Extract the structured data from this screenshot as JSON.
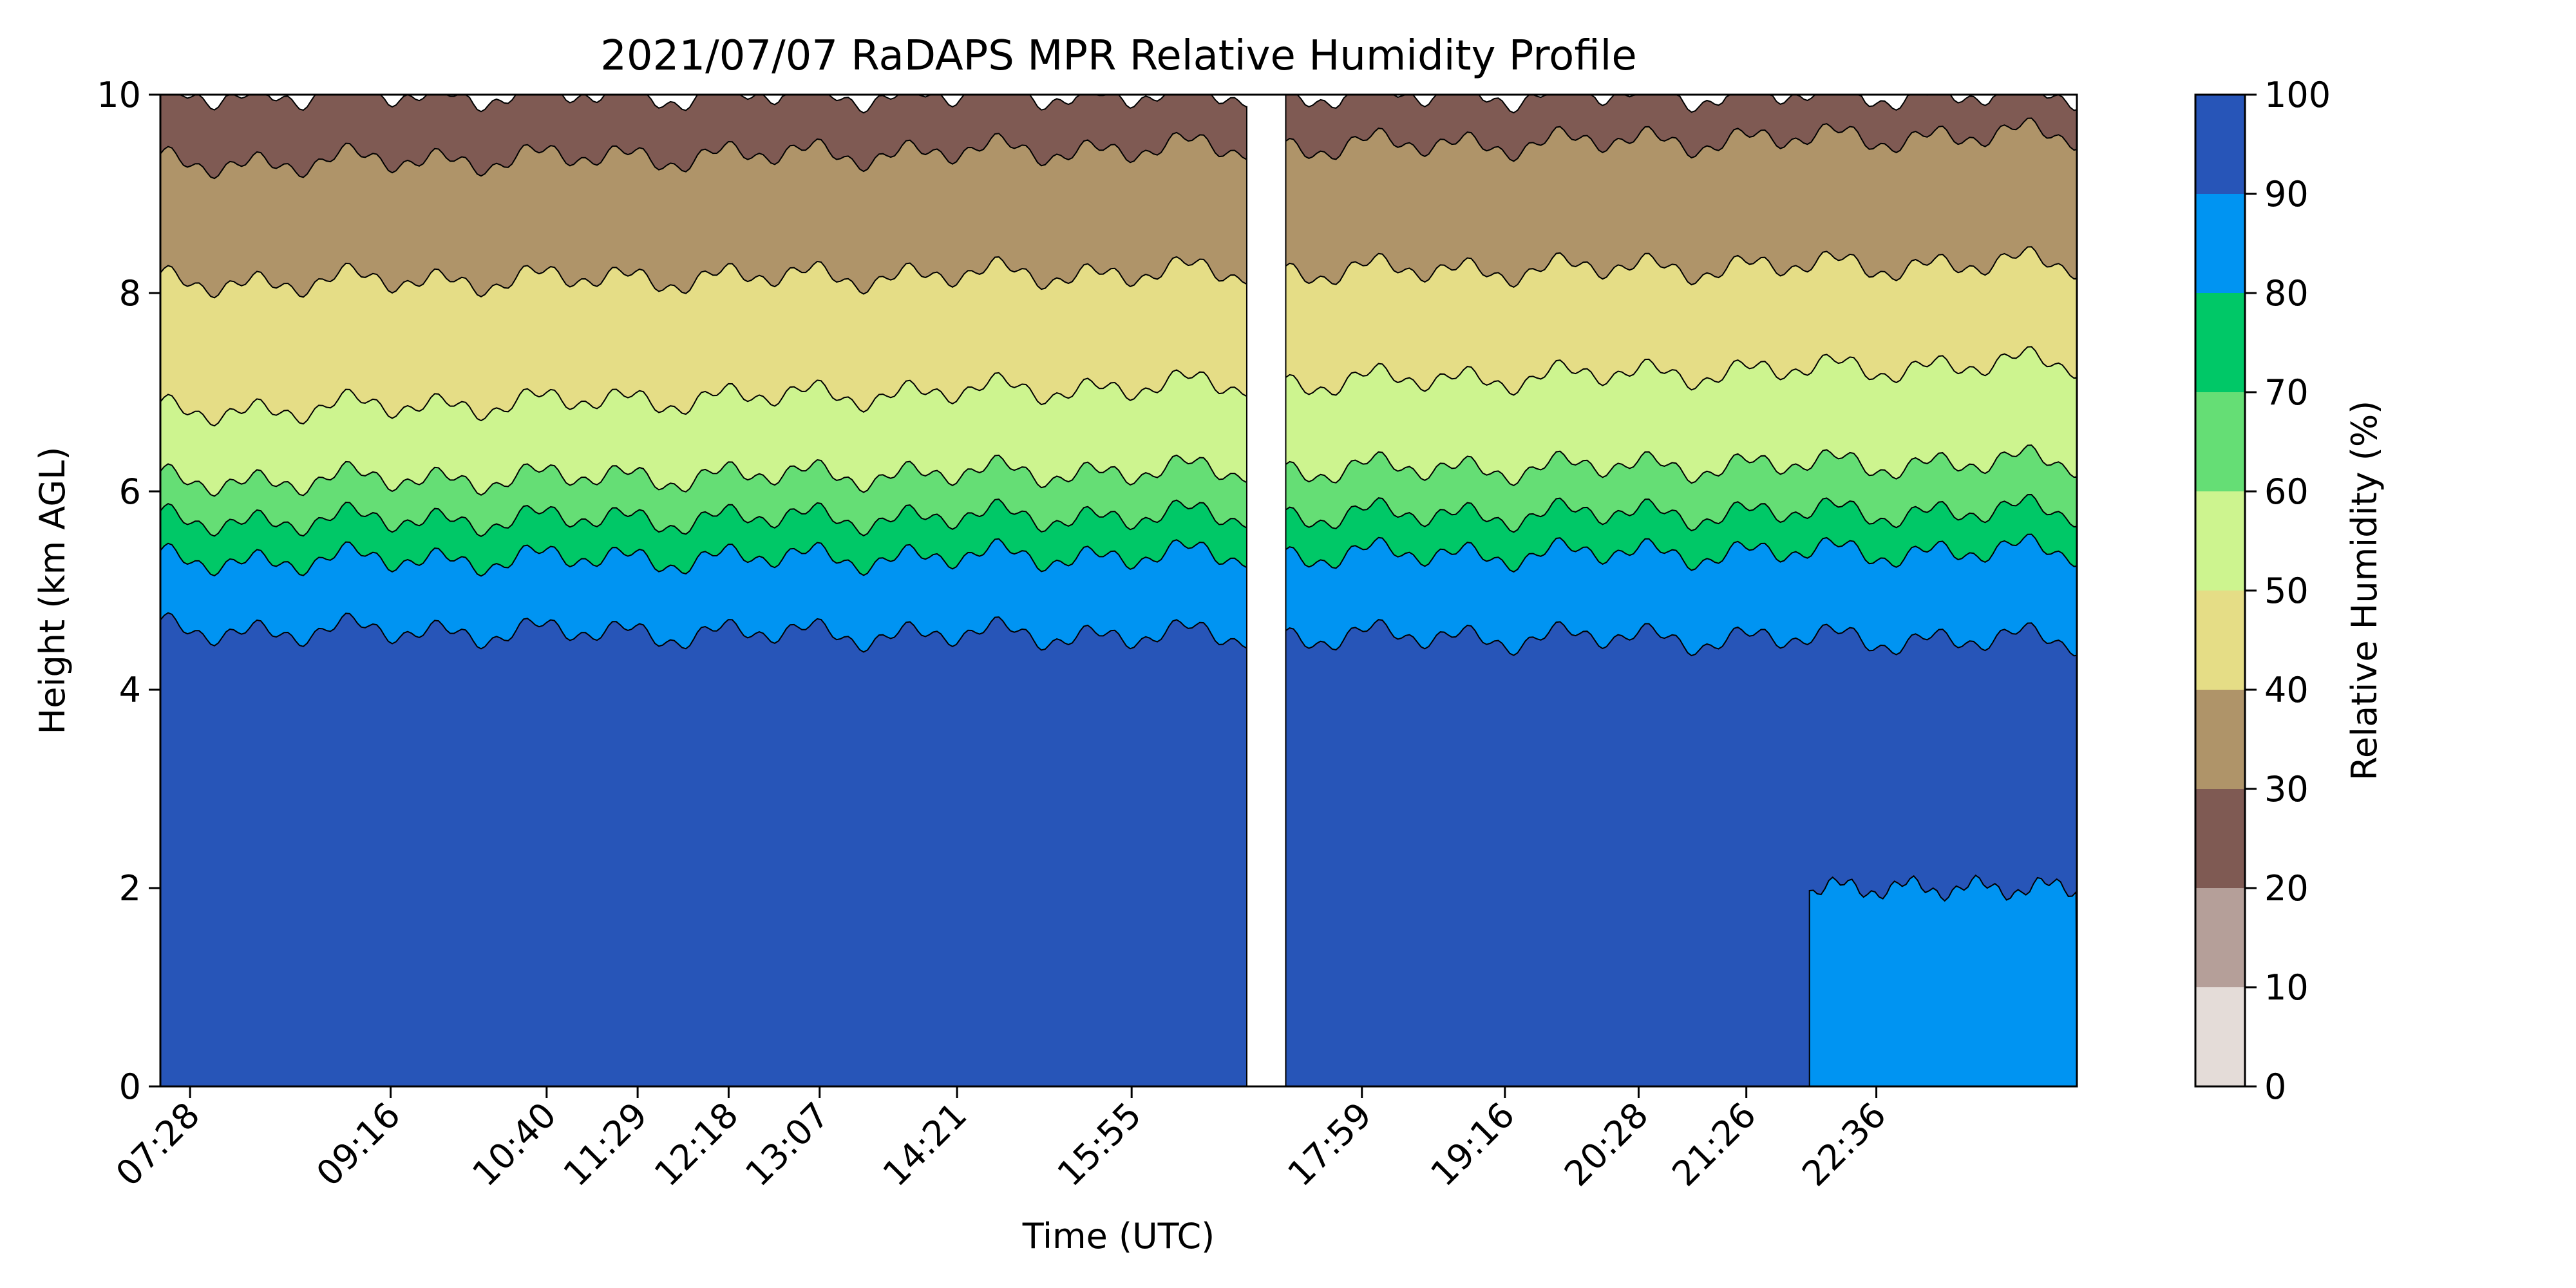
{
  "chart_data": {
    "type": "heatmap",
    "title": "2021/07/07 RaDAPS MPR Relative Humidity Profile",
    "xlabel": "Time (UTC)",
    "ylabel": "Height (km AGL)",
    "ylim": [
      0,
      10
    ],
    "yticks": [
      "0",
      "2",
      "4",
      "6",
      "8",
      "10"
    ],
    "xticks": [
      "07:28",
      "09:16",
      "10:40",
      "11:29",
      "12:18",
      "13:07",
      "14:21",
      "15:55",
      "17:59",
      "19:16",
      "20:28",
      "21:26",
      "22:36"
    ],
    "xtick_hours": [
      7.4667,
      9.2667,
      10.6667,
      11.4833,
      12.3,
      13.1167,
      14.35,
      15.9167,
      17.9833,
      19.2667,
      20.4667,
      21.4333,
      22.6
    ],
    "xlim_hours": [
      7.2,
      24.4
    ],
    "data_gap_hours": [
      16.95,
      17.3
    ],
    "colorbar": {
      "label": "Relative Humidity (%)",
      "ticks": [
        "0",
        "10",
        "20",
        "30",
        "40",
        "50",
        "60",
        "70",
        "80",
        "90",
        "100"
      ],
      "levels": [
        0,
        10,
        20,
        30,
        40,
        50,
        60,
        70,
        80,
        90,
        100
      ],
      "colors": [
        "#e4dcd8",
        "#b59f99",
        "#7f5a53",
        "#af9469",
        "#e5dd86",
        "#cdf48f",
        "#65de75",
        "#00c867",
        "#0094f2",
        "#2755b8"
      ]
    },
    "profile_bands_km": [
      {
        "range_percent": "90-100",
        "left_top": 4.6,
        "right_top": 4.5
      },
      {
        "range_percent": "80-90",
        "left_top": 5.3,
        "right_top": 5.4
      },
      {
        "range_percent": "70-80",
        "left_top": 5.7,
        "right_top": 5.8
      },
      {
        "range_percent": "60-70",
        "left_top": 6.1,
        "right_top": 6.3
      },
      {
        "range_percent": "50-60",
        "left_top": 6.8,
        "right_top": 7.3
      },
      {
        "range_percent": "40-50",
        "left_top": 8.1,
        "right_top": 8.3
      },
      {
        "range_percent": "30-40",
        "left_top": 9.3,
        "right_top": 9.6
      },
      {
        "range_percent": "20-30",
        "left_top": 10.0,
        "right_top": 10.0
      }
    ],
    "lower_layer_right_percent": "80-90",
    "lower_layer_right_top_km": 2.0
  }
}
